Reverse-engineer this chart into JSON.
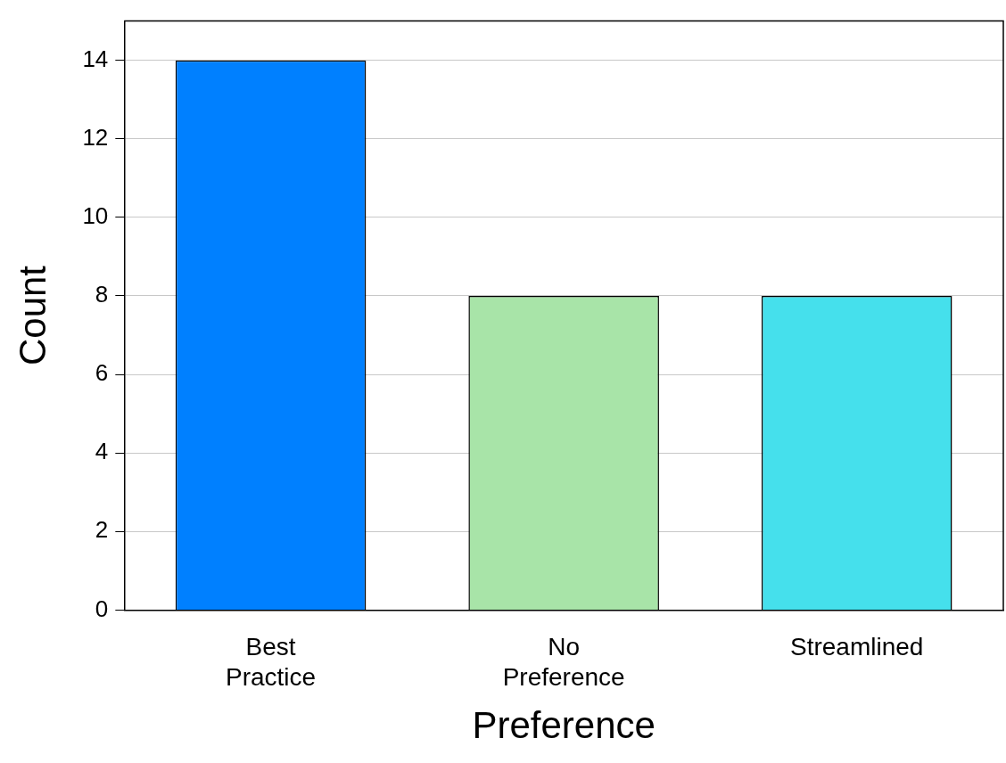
{
  "chart_data": {
    "type": "bar",
    "xlabel": "Preference",
    "ylabel": "Count",
    "categories": [
      "Best Practice",
      "No Preference",
      "Streamlined"
    ],
    "values": [
      14,
      8,
      8
    ],
    "colors": [
      "#0080ff",
      "#a8e4a8",
      "#45e0ec"
    ],
    "ylim": [
      0,
      15
    ],
    "yticks": [
      0,
      2,
      4,
      6,
      8,
      10,
      12,
      14
    ],
    "grid": "y",
    "legend": false
  }
}
